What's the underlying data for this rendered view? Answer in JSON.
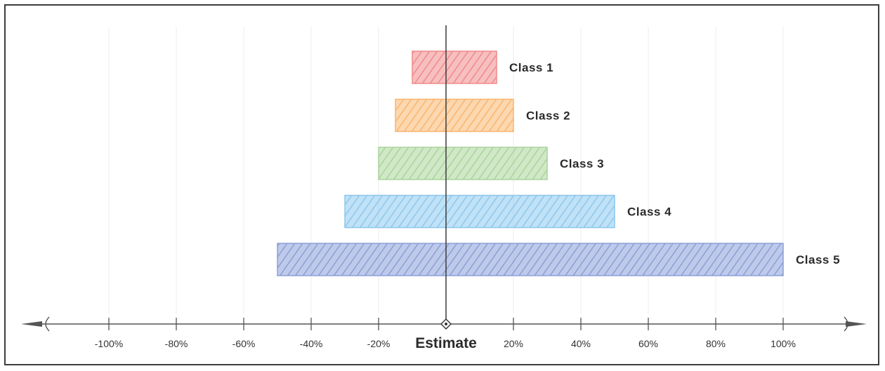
{
  "chart_data": {
    "type": "bar",
    "orientation": "horizontal",
    "categories": [
      "Class 1",
      "Class 2",
      "Class 3",
      "Class 4",
      "Class 5"
    ],
    "ranges": [
      {
        "label": "Class 1",
        "low": -10,
        "high": 15,
        "color": "#f08a8a"
      },
      {
        "label": "Class 2",
        "low": -15,
        "high": 20,
        "color": "#f9b56e"
      },
      {
        "label": "Class 3",
        "low": -20,
        "high": 30,
        "color": "#a9d49a"
      },
      {
        "label": "Class 4",
        "low": -30,
        "high": 50,
        "color": "#8cc8ee"
      },
      {
        "label": "Class 5",
        "low": -50,
        "high": 100,
        "color": "#8b9fd8"
      }
    ],
    "xlim": [
      -100,
      100
    ],
    "ticks": [
      {
        "value": -100,
        "label": "-100%"
      },
      {
        "value": -80,
        "label": "-80%"
      },
      {
        "value": -60,
        "label": "-60%"
      },
      {
        "value": -40,
        "label": "-40%"
      },
      {
        "value": -20,
        "label": "-20%"
      },
      {
        "value": 0,
        "label": "Estimate"
      },
      {
        "value": 20,
        "label": "20%"
      },
      {
        "value": 40,
        "label": "40%"
      },
      {
        "value": 60,
        "label": "60%"
      },
      {
        "value": 80,
        "label": "80%"
      },
      {
        "value": 100,
        "label": "100%"
      }
    ],
    "grid": true,
    "bar_fill_pattern": "diagonal-hatch"
  }
}
